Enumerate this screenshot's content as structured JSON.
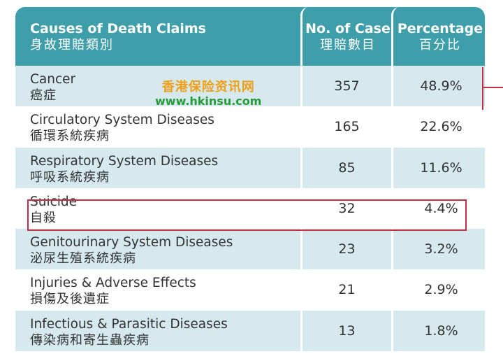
{
  "header": {
    "col1_en": "Causes of Death Claims",
    "col1_zh": "身故理賠類別",
    "col2_en": "No. of Case",
    "col2_zh": "理賠數目",
    "col3_en": "Percentage",
    "col3_zh": "百分比"
  },
  "rows": [
    {
      "en": "Cancer",
      "zh": "癌症",
      "cases": "357",
      "pct": "48.9%"
    },
    {
      "en": "Circulatory System Diseases",
      "zh": "循環系統疾病",
      "cases": "165",
      "pct": "22.6%"
    },
    {
      "en": "Respiratory System Diseases",
      "zh": "呼吸系統疾病",
      "cases": "85",
      "pct": "11.6%"
    },
    {
      "en": "Suicide",
      "zh": "自殺",
      "cases": "32",
      "pct": "4.4%"
    },
    {
      "en": "Genitourinary System Diseases",
      "zh": "泌尿生殖系統疾病",
      "cases": "23",
      "pct": "3.2%"
    },
    {
      "en": "Injuries & Adverse Effects",
      "zh": "損傷及後遺症",
      "cases": "21",
      "pct": "2.9%"
    },
    {
      "en": "Infectious & Parasitic Diseases",
      "zh": "傳染病和寄生蟲疾病",
      "cases": "13",
      "pct": "1.8%"
    }
  ],
  "watermark": {
    "zh": "香港保险资讯网",
    "url": "www.hkinsu.com"
  },
  "colors": {
    "header_bg": "#3e9eaa",
    "alt_row_bg": "#d6e9ee",
    "highlight": "#c03042",
    "watermark_zh": "#f0a018",
    "watermark_url": "#2a9a3a"
  },
  "chart_data": {
    "type": "table",
    "columns": [
      "Causes of Death Claims 身故理賠類別",
      "No. of Case 理賠數目",
      "Percentage 百分比"
    ],
    "rows": [
      [
        "Cancer 癌症",
        357,
        "48.9%"
      ],
      [
        "Circulatory System Diseases 循環系統疾病",
        165,
        "22.6%"
      ],
      [
        "Respiratory System Diseases 呼吸系統疾病",
        85,
        "11.6%"
      ],
      [
        "Suicide 自殺",
        32,
        "4.4%"
      ],
      [
        "Genitourinary System Diseases 泌尿生殖系統疾病",
        23,
        "3.2%"
      ],
      [
        "Injuries & Adverse Effects 損傷及後遺症",
        21,
        "2.9%"
      ],
      [
        "Infectious & Parasitic Diseases 傳染病和寄生蟲疾病",
        13,
        "1.8%"
      ]
    ]
  }
}
